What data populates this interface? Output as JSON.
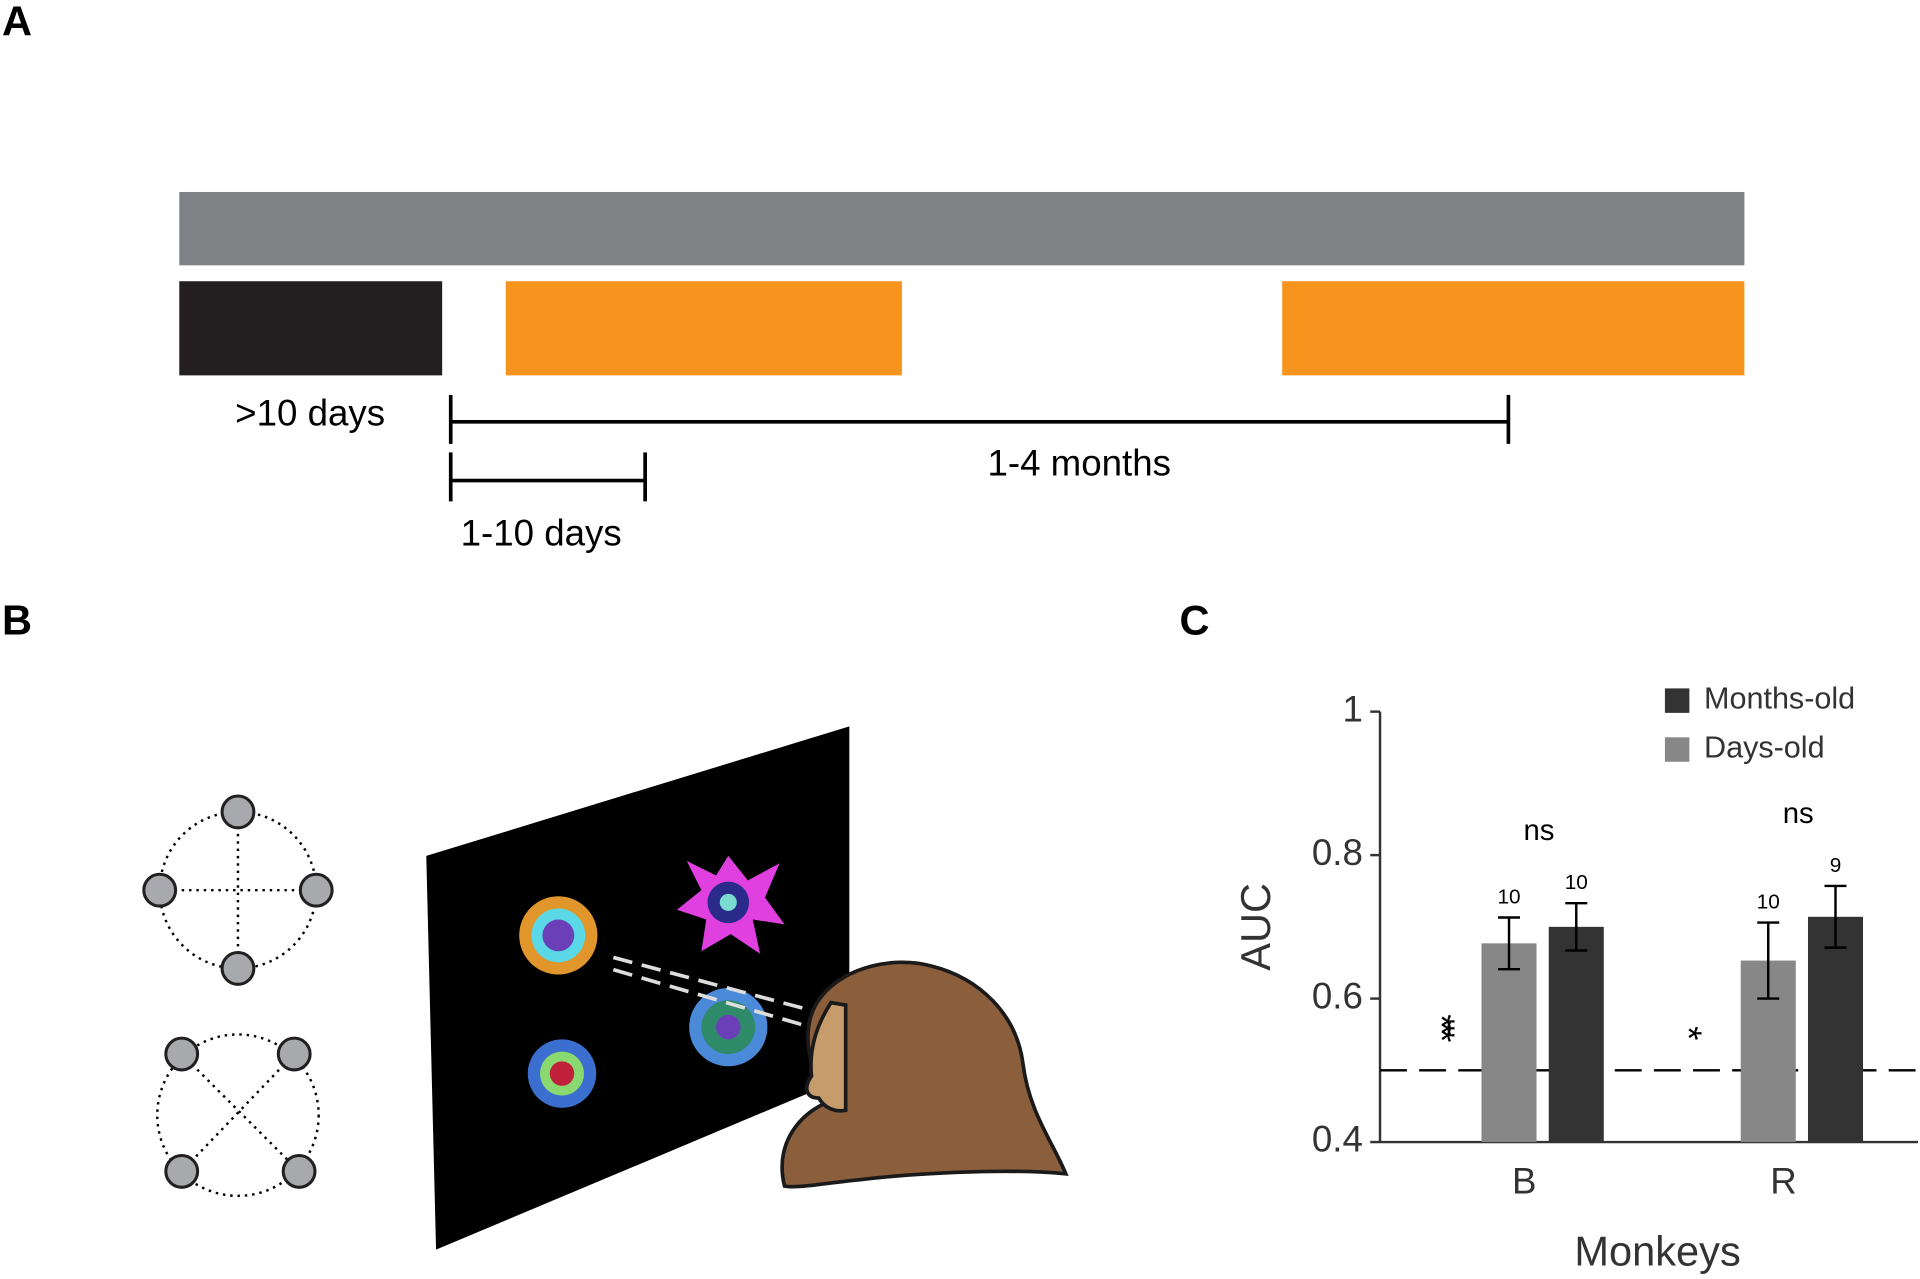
{
  "panels": {
    "A": {
      "label": "A",
      "durations": [
        ">10 days",
        "1-10 days",
        "1-4 months"
      ]
    },
    "B": {
      "label": "B"
    },
    "C": {
      "label": "C"
    }
  },
  "chart_data": {
    "type": "bar",
    "categories": [
      "B",
      "R"
    ],
    "series": [
      {
        "name": "Days-old",
        "color": "#878787",
        "values": [
          0.677,
          0.653
        ],
        "errors": [
          0.036,
          0.053
        ],
        "n": [
          10,
          10
        ]
      },
      {
        "name": "Months-old",
        "color": "#333333",
        "values": [
          0.7,
          0.714
        ],
        "errors": [
          0.033,
          0.043
        ],
        "n": [
          10,
          9
        ]
      }
    ],
    "ylim": [
      0.4,
      1
    ],
    "yticks": [
      0.4,
      0.6,
      0.8,
      1
    ],
    "xlabel": "Monkeys",
    "ylabel": "AUC",
    "comparison_labels": [
      "ns",
      "ns"
    ],
    "significance": [
      "***",
      "*"
    ],
    "reference_line": 0.5
  }
}
